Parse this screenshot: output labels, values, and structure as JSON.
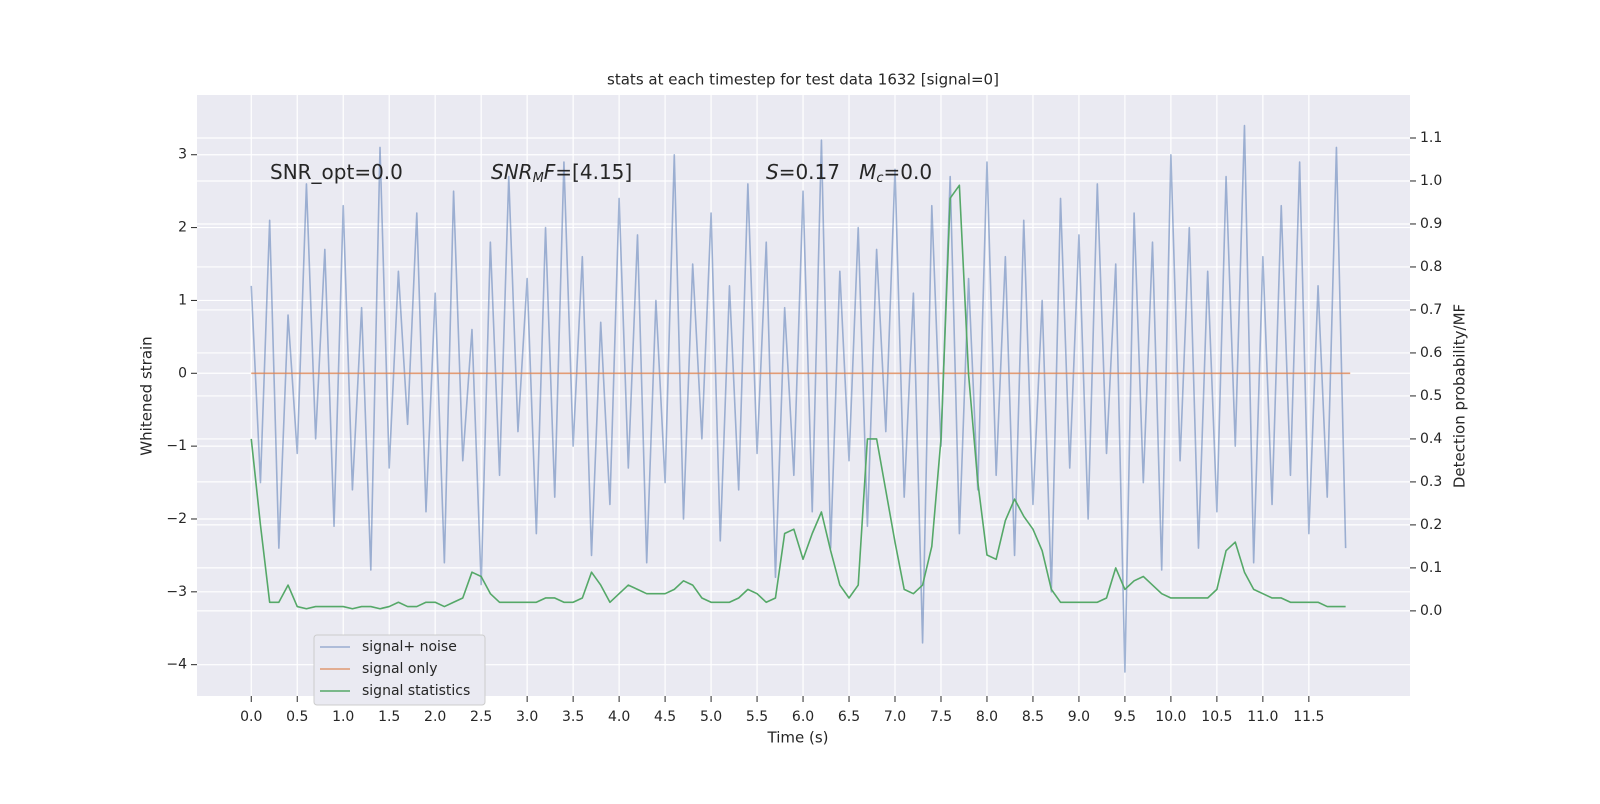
{
  "chart_data": {
    "type": "line",
    "title": "stats at each timestep for test data 1632 [signal=0]",
    "xlabel": "Time (s)",
    "ylabel": "Whitened strain",
    "y2label": "Detection probability/MF",
    "annotations": [
      {
        "parts": [
          {
            "text": "SNR_opt=0.0"
          }
        ]
      },
      {
        "parts": [
          {
            "text": "SNR",
            "italic": true
          },
          {
            "text": "M",
            "italic": true,
            "subscript": true
          },
          {
            "text": "F",
            "italic": true
          },
          {
            "text": "=[4.15]"
          }
        ]
      },
      {
        "parts": [
          {
            "text": "S",
            "italic": true
          },
          {
            "text": "=0.17   "
          },
          {
            "text": "M",
            "italic": true
          },
          {
            "text": "c",
            "italic": true,
            "subscript": true
          },
          {
            "text": "=0.0"
          }
        ]
      }
    ],
    "series": [
      {
        "name": "signal+ noise",
        "color": "#4c72b0",
        "opacity": 0.5,
        "x": [
          0.0,
          0.1,
          0.2,
          0.3,
          0.4,
          0.5,
          0.6,
          0.7,
          0.8,
          0.9,
          1.0,
          1.1,
          1.2,
          1.3,
          1.4,
          1.5,
          1.6,
          1.7,
          1.8,
          1.9,
          2.0,
          2.1,
          2.2,
          2.3,
          2.4,
          2.5,
          2.6,
          2.7,
          2.8,
          2.9,
          3.0,
          3.1,
          3.2,
          3.3,
          3.4,
          3.5,
          3.6,
          3.7,
          3.8,
          3.9,
          4.0,
          4.1,
          4.2,
          4.3,
          4.4,
          4.5,
          4.6,
          4.7,
          4.8,
          4.9,
          5.0,
          5.1,
          5.2,
          5.3,
          5.4,
          5.5,
          5.6,
          5.7,
          5.8,
          5.9,
          6.0,
          6.1,
          6.2,
          6.3,
          6.4,
          6.5,
          6.6,
          6.7,
          6.8,
          6.9,
          7.0,
          7.1,
          7.2,
          7.3,
          7.4,
          7.5,
          7.6,
          7.7,
          7.8,
          7.9,
          8.0,
          8.1,
          8.2,
          8.3,
          8.4,
          8.5,
          8.6,
          8.7,
          8.8,
          8.9,
          9.0,
          9.1,
          9.2,
          9.3,
          9.4,
          9.5,
          9.6,
          9.7,
          9.8,
          9.9,
          10.0,
          10.1,
          10.2,
          10.3,
          10.4,
          10.5,
          10.6,
          10.7,
          10.8,
          10.9,
          11.0,
          11.1,
          11.2,
          11.3,
          11.4,
          11.5,
          11.6,
          11.7,
          11.8,
          11.9
        ],
        "values": [
          1.2,
          -1.5,
          2.1,
          -2.4,
          0.8,
          -1.1,
          2.6,
          -0.9,
          1.7,
          -2.1,
          2.3,
          -1.6,
          0.9,
          -2.7,
          3.1,
          -1.3,
          1.4,
          -0.7,
          2.2,
          -1.9,
          1.1,
          -2.6,
          2.5,
          -1.2,
          0.6,
          -2.9,
          1.8,
          -1.4,
          2.7,
          -0.8,
          1.3,
          -2.2,
          2.0,
          -1.7,
          2.9,
          -1.0,
          1.6,
          -2.5,
          0.7,
          -1.8,
          2.4,
          -1.3,
          1.9,
          -2.6,
          1.0,
          -1.5,
          3.0,
          -2.0,
          1.5,
          -0.9,
          2.2,
          -2.3,
          1.2,
          -1.6,
          2.6,
          -1.1,
          1.8,
          -2.8,
          0.9,
          -1.4,
          2.5,
          -1.9,
          3.2,
          -2.4,
          1.4,
          -1.2,
          2.0,
          -2.1,
          1.7,
          -0.8,
          2.8,
          -1.7,
          1.1,
          -3.7,
          2.3,
          -1.0,
          2.7,
          -2.2,
          1.3,
          -1.6,
          2.9,
          -1.4,
          1.6,
          -2.5,
          2.1,
          -1.8,
          1.0,
          -3.0,
          2.4,
          -1.3,
          1.9,
          -2.0,
          2.6,
          -1.1,
          1.5,
          -4.1,
          2.2,
          -1.5,
          1.8,
          -2.7,
          3.0,
          -1.2,
          2.0,
          -2.4,
          1.4,
          -1.9,
          2.7,
          -1.0,
          3.4,
          -2.6,
          1.6,
          -1.8,
          2.3,
          -1.4,
          2.9,
          -2.2,
          1.2,
          -1.7,
          3.1,
          -2.4
        ]
      },
      {
        "name": "signal only",
        "color": "#dd8452",
        "opacity": 0.8,
        "x": [
          0.0,
          11.95
        ],
        "values": [
          0,
          0
        ]
      },
      {
        "name": "signal statistics",
        "color": "#55a868",
        "opacity": 1,
        "axis": "y2",
        "x": [
          0.0,
          0.1,
          0.2,
          0.3,
          0.4,
          0.5,
          0.6,
          0.7,
          0.8,
          0.9,
          1.0,
          1.1,
          1.2,
          1.3,
          1.4,
          1.5,
          1.6,
          1.7,
          1.8,
          1.9,
          2.0,
          2.1,
          2.2,
          2.3,
          2.4,
          2.5,
          2.6,
          2.7,
          2.8,
          2.9,
          3.0,
          3.1,
          3.2,
          3.3,
          3.4,
          3.5,
          3.6,
          3.7,
          3.8,
          3.9,
          4.0,
          4.1,
          4.2,
          4.3,
          4.4,
          4.5,
          4.6,
          4.7,
          4.8,
          4.9,
          5.0,
          5.1,
          5.2,
          5.3,
          5.4,
          5.5,
          5.6,
          5.7,
          5.8,
          5.9,
          6.0,
          6.1,
          6.2,
          6.3,
          6.4,
          6.5,
          6.6,
          6.7,
          6.8,
          6.9,
          7.0,
          7.1,
          7.2,
          7.3,
          7.4,
          7.5,
          7.6,
          7.7,
          7.8,
          7.9,
          8.0,
          8.1,
          8.2,
          8.3,
          8.4,
          8.5,
          8.6,
          8.7,
          8.8,
          8.9,
          9.0,
          9.1,
          9.2,
          9.3,
          9.4,
          9.5,
          9.6,
          9.7,
          9.8,
          9.9,
          10.0,
          10.1,
          10.2,
          10.3,
          10.4,
          10.5,
          10.6,
          10.7,
          10.8,
          10.9,
          11.0,
          11.1,
          11.2,
          11.3,
          11.4,
          11.5,
          11.6,
          11.7,
          11.8,
          11.9
        ],
        "values": [
          0.4,
          0.2,
          0.02,
          0.02,
          0.06,
          0.01,
          0.005,
          0.01,
          0.01,
          0.01,
          0.01,
          0.005,
          0.01,
          0.01,
          0.005,
          0.01,
          0.02,
          0.01,
          0.01,
          0.02,
          0.02,
          0.01,
          0.02,
          0.03,
          0.09,
          0.08,
          0.04,
          0.02,
          0.02,
          0.02,
          0.02,
          0.02,
          0.03,
          0.03,
          0.02,
          0.02,
          0.03,
          0.09,
          0.06,
          0.02,
          0.04,
          0.06,
          0.05,
          0.04,
          0.04,
          0.04,
          0.05,
          0.07,
          0.06,
          0.03,
          0.02,
          0.02,
          0.02,
          0.03,
          0.05,
          0.04,
          0.02,
          0.03,
          0.18,
          0.19,
          0.12,
          0.18,
          0.23,
          0.14,
          0.06,
          0.03,
          0.06,
          0.4,
          0.4,
          0.28,
          0.16,
          0.05,
          0.04,
          0.06,
          0.15,
          0.4,
          0.96,
          0.99,
          0.55,
          0.3,
          0.13,
          0.12,
          0.21,
          0.26,
          0.22,
          0.19,
          0.14,
          0.05,
          0.02,
          0.02,
          0.02,
          0.02,
          0.02,
          0.03,
          0.1,
          0.05,
          0.07,
          0.08,
          0.06,
          0.04,
          0.03,
          0.03,
          0.03,
          0.03,
          0.03,
          0.05,
          0.14,
          0.16,
          0.09,
          0.05,
          0.04,
          0.03,
          0.03,
          0.02,
          0.02,
          0.02,
          0.02,
          0.01,
          0.01,
          0.01
        ]
      }
    ],
    "xlim": [
      -0.59,
      12.6
    ],
    "xticks": [
      {
        "value": 0,
        "label": "0.0"
      },
      0.5,
      {
        "value": 1,
        "label": "1.0"
      },
      1.5,
      {
        "value": 2,
        "label": "2.0"
      },
      2.5,
      {
        "value": 3,
        "label": "3.0"
      },
      3.5,
      {
        "value": 4,
        "label": "4.0"
      },
      4.5,
      {
        "value": 5,
        "label": "5.0"
      },
      5.5,
      {
        "value": 6,
        "label": "6.0"
      },
      6.5,
      {
        "value": 7,
        "label": "7.0"
      },
      7.5,
      {
        "value": 8,
        "label": "8.0"
      },
      8.5,
      {
        "value": 9,
        "label": "9.0"
      },
      9.5,
      {
        "value": 10,
        "label": "10.0"
      },
      10.5,
      {
        "value": 11,
        "label": "11.0"
      },
      11.5
    ],
    "ylim": [
      -4.43,
      3.82
    ],
    "yticks": [
      {
        "value": -4,
        "label": "−4"
      },
      {
        "value": -3,
        "label": "−3"
      },
      {
        "value": -2,
        "label": "−2"
      },
      {
        "value": -1,
        "label": "−1"
      },
      0,
      1,
      2,
      3
    ],
    "y2lim": [
      -0.198,
      1.2
    ],
    "y2ticks": [
      {
        "value": 0,
        "label": "0.0"
      },
      0.1,
      0.2,
      0.3,
      0.4,
      0.5,
      0.6,
      0.7,
      0.8,
      0.9,
      {
        "value": 1,
        "label": "1.0"
      },
      1.1
    ],
    "grid": true,
    "legend": "lower left"
  }
}
